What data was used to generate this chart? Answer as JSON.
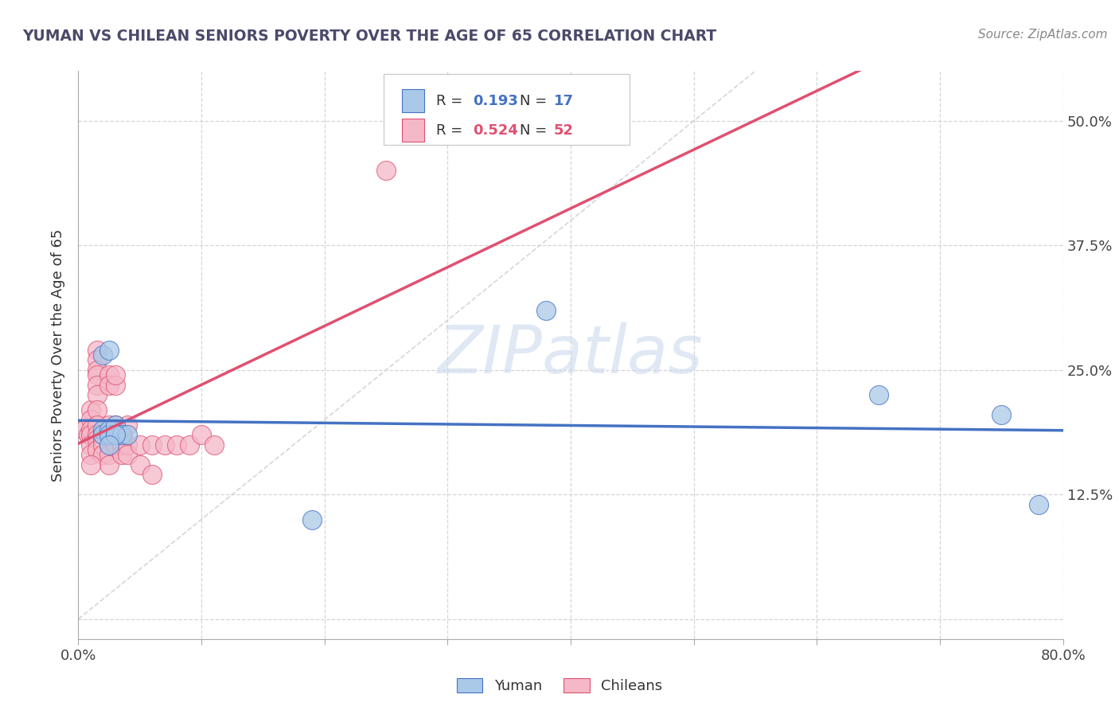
{
  "title": "YUMAN VS CHILEAN SENIORS POVERTY OVER THE AGE OF 65 CORRELATION CHART",
  "source": "Source: ZipAtlas.com",
  "ylabel": "Seniors Poverty Over the Age of 65",
  "xlim": [
    0.0,
    0.8
  ],
  "ylim": [
    -0.02,
    0.55
  ],
  "yticks": [
    0.0,
    0.125,
    0.25,
    0.375,
    0.5
  ],
  "ytick_labels": [
    "",
    "12.5%",
    "25.0%",
    "37.5%",
    "50.0%"
  ],
  "xtick_positions": [
    0.0,
    0.1,
    0.2,
    0.3,
    0.4,
    0.5,
    0.6,
    0.7,
    0.8
  ],
  "xtick_labels": [
    "0.0%",
    "",
    "",
    "",
    "",
    "",
    "",
    "",
    "80.0%"
  ],
  "grid_color": "#cccccc",
  "yuman_color": "#aac9e8",
  "chilean_color": "#f4b8c8",
  "yuman_R": 0.193,
  "yuman_N": 17,
  "chilean_R": 0.524,
  "chilean_N": 52,
  "yuman_line_color": "#4472c4",
  "chilean_line_color": "#e05070",
  "yuman_points": [
    [
      0.02,
      0.265
    ],
    [
      0.025,
      0.27
    ],
    [
      0.02,
      0.19
    ],
    [
      0.02,
      0.185
    ],
    [
      0.025,
      0.19
    ],
    [
      0.025,
      0.185
    ],
    [
      0.03,
      0.195
    ],
    [
      0.03,
      0.185
    ],
    [
      0.035,
      0.185
    ],
    [
      0.04,
      0.185
    ],
    [
      0.38,
      0.31
    ],
    [
      0.65,
      0.225
    ],
    [
      0.75,
      0.205
    ],
    [
      0.78,
      0.115
    ],
    [
      0.19,
      0.1
    ],
    [
      0.03,
      0.185
    ],
    [
      0.025,
      0.175
    ]
  ],
  "chilean_points": [
    [
      0.005,
      0.19
    ],
    [
      0.008,
      0.185
    ],
    [
      0.01,
      0.21
    ],
    [
      0.01,
      0.2
    ],
    [
      0.01,
      0.19
    ],
    [
      0.01,
      0.185
    ],
    [
      0.01,
      0.175
    ],
    [
      0.01,
      0.165
    ],
    [
      0.015,
      0.27
    ],
    [
      0.015,
      0.26
    ],
    [
      0.015,
      0.25
    ],
    [
      0.015,
      0.245
    ],
    [
      0.015,
      0.235
    ],
    [
      0.015,
      0.225
    ],
    [
      0.015,
      0.21
    ],
    [
      0.015,
      0.195
    ],
    [
      0.015,
      0.185
    ],
    [
      0.015,
      0.18
    ],
    [
      0.015,
      0.17
    ],
    [
      0.02,
      0.185
    ],
    [
      0.02,
      0.18
    ],
    [
      0.02,
      0.175
    ],
    [
      0.02,
      0.165
    ],
    [
      0.025,
      0.245
    ],
    [
      0.025,
      0.235
    ],
    [
      0.025,
      0.195
    ],
    [
      0.025,
      0.185
    ],
    [
      0.025,
      0.175
    ],
    [
      0.025,
      0.165
    ],
    [
      0.025,
      0.155
    ],
    [
      0.03,
      0.235
    ],
    [
      0.03,
      0.195
    ],
    [
      0.03,
      0.185
    ],
    [
      0.03,
      0.175
    ],
    [
      0.035,
      0.185
    ],
    [
      0.035,
      0.175
    ],
    [
      0.035,
      0.165
    ],
    [
      0.04,
      0.175
    ],
    [
      0.04,
      0.165
    ],
    [
      0.05,
      0.175
    ],
    [
      0.06,
      0.175
    ],
    [
      0.07,
      0.175
    ],
    [
      0.08,
      0.175
    ],
    [
      0.09,
      0.175
    ],
    [
      0.1,
      0.185
    ],
    [
      0.11,
      0.175
    ],
    [
      0.05,
      0.155
    ],
    [
      0.06,
      0.145
    ],
    [
      0.25,
      0.45
    ],
    [
      0.03,
      0.245
    ],
    [
      0.04,
      0.195
    ],
    [
      0.01,
      0.155
    ]
  ],
  "diag_line_color": "#cccccc",
  "watermark_text": "ZIPatlas",
  "watermark_color": "#ccdaee"
}
